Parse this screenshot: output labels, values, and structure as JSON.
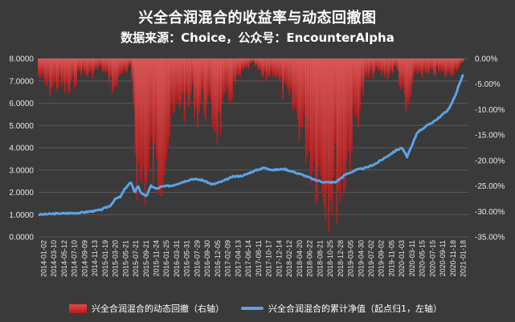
{
  "page": {
    "title": "兴全合润混合的收益率与动态回撤图",
    "subtitle": "数据来源：Choice，公众号：EncounterAlpha"
  },
  "legend": {
    "bar_label": "兴全合润混合的动态回撤（右轴）",
    "line_label": "兴全合润混合的累计净值（起点归1，左轴）"
  },
  "colors": {
    "background": "#3a3a3a",
    "bars": "#d62b2b",
    "line": "#5ba3e6"
  },
  "chart_data": {
    "type": "bar+line",
    "title": "兴全合润混合的收益率与动态回撤图",
    "subtitle": "数据来源：Choice，公众号：EncounterAlpha",
    "left_axis": {
      "ylim": [
        0,
        8
      ],
      "ticks": [
        "0.0000",
        "1.0000",
        "2.0000",
        "3.0000",
        "4.0000",
        "5.0000",
        "6.0000",
        "7.0000",
        "8.0000"
      ]
    },
    "right_axis": {
      "ylim": [
        -35,
        0
      ],
      "ticks": [
        "0.00%",
        "-5.00%",
        "-10.00%",
        "-15.00%",
        "-20.00%",
        "-25.00%",
        "-30.00%",
        "-35.00%"
      ]
    },
    "x_tick_labels": [
      "2014-01-02",
      "2014-03-10",
      "2014-05-12",
      "2014-07-10",
      "2014-09-09",
      "2014-11-13",
      "2015-01-19",
      "2015-03-20",
      "2015-05-21",
      "2015-07-21",
      "2015-09-21",
      "2015-11-24",
      "2016-01-25",
      "2016-03-31",
      "2016-05-31",
      "2016-07-29",
      "2016-09-30",
      "2016-12-05",
      "2017-02-09",
      "2017-04-13",
      "2017-06-14",
      "2017-08-11",
      "2017-10-17",
      "2017-12-14",
      "2018-02-12",
      "2018-04-20",
      "2018-06-22",
      "2018-08-21",
      "2018-10-25",
      "2018-12-28",
      "2019-03-05",
      "2019-04-30",
      "2019-07-02",
      "2019-09-02",
      "2019-11-05",
      "2020-01-03",
      "2020-03-11",
      "2020-05-15",
      "2020-07-15",
      "2020-09-11",
      "2020-11-18",
      "2021-01-18"
    ],
    "grid": true,
    "legend_position": "bottom",
    "series": [
      {
        "name": "兴全合润混合的累计净值（起点归1，左轴）",
        "type": "line",
        "axis": "left",
        "points": [
          [
            0,
            1.0
          ],
          [
            2,
            1.05
          ],
          [
            4,
            1.08
          ],
          [
            6,
            1.2
          ],
          [
            7,
            1.4
          ],
          [
            7.5,
            1.7
          ],
          [
            8,
            1.8
          ],
          [
            8.5,
            2.2
          ],
          [
            9,
            2.45
          ],
          [
            9.4,
            2.0
          ],
          [
            9.7,
            2.3
          ],
          [
            10,
            2.0
          ],
          [
            10.5,
            1.8
          ],
          [
            11,
            2.3
          ],
          [
            11.5,
            2.15
          ],
          [
            12,
            2.25
          ],
          [
            13,
            2.3
          ],
          [
            14,
            2.45
          ],
          [
            15,
            2.6
          ],
          [
            16,
            2.55
          ],
          [
            17,
            2.35
          ],
          [
            18,
            2.5
          ],
          [
            19,
            2.7
          ],
          [
            20,
            2.75
          ],
          [
            21,
            2.95
          ],
          [
            22,
            3.1
          ],
          [
            23,
            3.0
          ],
          [
            24,
            3.05
          ],
          [
            25,
            2.9
          ],
          [
            26,
            2.75
          ],
          [
            27,
            2.55
          ],
          [
            28,
            2.45
          ],
          [
            29,
            2.45
          ],
          [
            30,
            2.8
          ],
          [
            31,
            3.0
          ],
          [
            32,
            3.1
          ],
          [
            33,
            3.3
          ],
          [
            34,
            3.6
          ],
          [
            35,
            3.9
          ],
          [
            35.5,
            4.0
          ],
          [
            36,
            3.6
          ],
          [
            36.5,
            4.1
          ],
          [
            37,
            4.7
          ],
          [
            38,
            5.0
          ],
          [
            39,
            5.3
          ],
          [
            40,
            5.7
          ],
          [
            40.5,
            6.1
          ],
          [
            41,
            6.7
          ],
          [
            41.5,
            7.3
          ]
        ]
      },
      {
        "name": "兴全合润混合的动态回撤（右轴）",
        "type": "bar",
        "axis": "right",
        "points": [
          [
            0,
            -4
          ],
          [
            1,
            -7
          ],
          [
            2,
            -6
          ],
          [
            3,
            -8
          ],
          [
            4,
            -3
          ],
          [
            5,
            -4
          ],
          [
            6,
            -2
          ],
          [
            7,
            -5
          ],
          [
            7.5,
            -8
          ],
          [
            8,
            -3
          ],
          [
            8.5,
            -4
          ],
          [
            9,
            -2
          ],
          [
            9.3,
            -10
          ],
          [
            9.5,
            -23
          ],
          [
            9.8,
            -28
          ],
          [
            10,
            -30
          ],
          [
            10.3,
            -26
          ],
          [
            10.6,
            -30
          ],
          [
            11,
            -22
          ],
          [
            11.5,
            -28
          ],
          [
            12,
            -24
          ],
          [
            12.5,
            -20
          ],
          [
            13,
            -16
          ],
          [
            13.5,
            -12
          ],
          [
            14,
            -9
          ],
          [
            14.5,
            -13
          ],
          [
            15,
            -8
          ],
          [
            15.5,
            -13
          ],
          [
            16,
            -10
          ],
          [
            16.5,
            -12
          ],
          [
            17,
            -14
          ],
          [
            17.5,
            -16
          ],
          [
            18,
            -13
          ],
          [
            19,
            -7
          ],
          [
            20,
            -3
          ],
          [
            21,
            -1
          ],
          [
            22,
            -5
          ],
          [
            23,
            -3
          ],
          [
            24,
            -8
          ],
          [
            25,
            -12
          ],
          [
            25.5,
            -15
          ],
          [
            26,
            -18
          ],
          [
            26.5,
            -22
          ],
          [
            27,
            -25
          ],
          [
            27.5,
            -27
          ],
          [
            28,
            -29
          ],
          [
            28.5,
            -30
          ],
          [
            29,
            -28
          ],
          [
            29.5,
            -30
          ],
          [
            30,
            -25
          ],
          [
            30.5,
            -20
          ],
          [
            31,
            -14
          ],
          [
            31.5,
            -10
          ],
          [
            32,
            -5
          ],
          [
            33,
            -3
          ],
          [
            34,
            -4
          ],
          [
            35,
            -2
          ],
          [
            35.5,
            -8
          ],
          [
            36,
            -14
          ],
          [
            36.5,
            -7
          ],
          [
            37,
            -3
          ],
          [
            38,
            -4
          ],
          [
            39,
            -3
          ],
          [
            40,
            -4
          ],
          [
            41,
            -2
          ],
          [
            41.5,
            -1
          ]
        ]
      }
    ]
  }
}
